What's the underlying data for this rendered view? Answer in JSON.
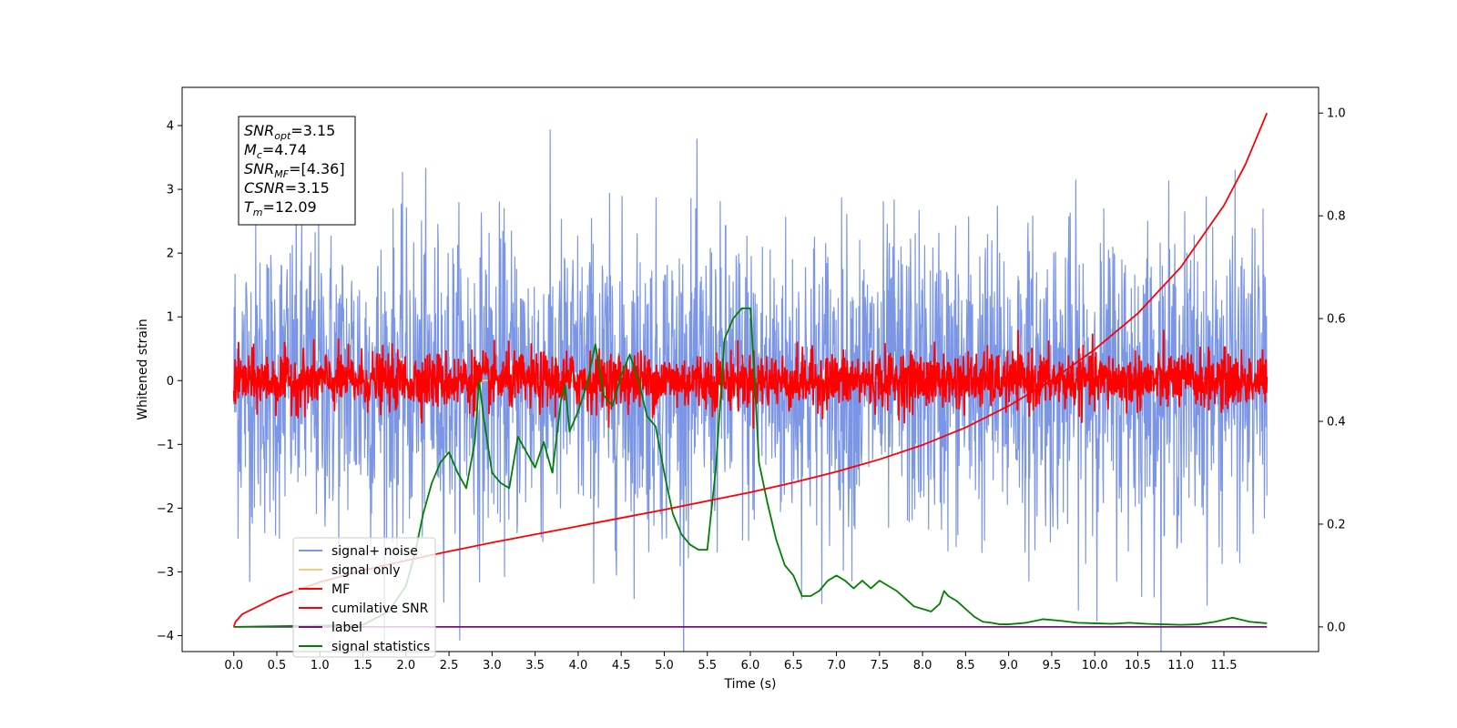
{
  "chart_data": {
    "type": "line",
    "title": "",
    "xlabel": "Time (s)",
    "ylabel": "Whitened strain",
    "y2label": "",
    "xlim": [
      -0.6,
      12.6
    ],
    "ylim": [
      -4.25,
      4.6
    ],
    "y2lim": [
      -0.048,
      1.05
    ],
    "xticks": [
      0,
      0.5,
      1,
      1.5,
      2,
      2.5,
      3,
      3.5,
      4,
      4.5,
      5,
      5.5,
      6,
      6.5,
      7,
      7.5,
      8,
      8.5,
      9,
      9.5,
      10,
      10.5,
      11,
      11.5
    ],
    "xtick_labels": [
      "0.0",
      "0.5",
      "1.0",
      "1.5",
      "2.0",
      "2.5",
      "3.0",
      "3.5",
      "4.0",
      "4.5",
      "5.0",
      "5.5",
      "6.0",
      "6.5",
      "7.0",
      "7.5",
      "8.0",
      "8.5",
      "9.0",
      "9.5",
      "10.0",
      "10.5",
      "11.0",
      "11.5"
    ],
    "yticks": [
      -4,
      -3,
      -2,
      -1,
      0,
      1,
      2,
      3,
      4
    ],
    "ytick_labels": [
      "−4",
      "−3",
      "−2",
      "−1",
      "0",
      "1",
      "2",
      "3",
      "4"
    ],
    "y2ticks": [
      0,
      0.2,
      0.4,
      0.6,
      0.8,
      1.0
    ],
    "y2tick_labels": [
      "0.0",
      "0.2",
      "0.4",
      "0.6",
      "0.8",
      "1.0"
    ],
    "legend_position": "lower-left",
    "grid": false,
    "annotation": {
      "lines": [
        {
          "sym": "SNR",
          "sub": "opt",
          "val": "=3.15"
        },
        {
          "sym": "M",
          "sub": "c",
          "val": "=4.74"
        },
        {
          "sym": "SNR",
          "sub": "MF",
          "val": "=[4.36]"
        },
        {
          "sym": "CSNR",
          "sub": "",
          "val": "=3.15"
        },
        {
          "sym": "T",
          "sub": "m",
          "val": "=12.09"
        }
      ]
    },
    "series": [
      {
        "name": "signal+ noise",
        "axis": "left",
        "color": "#7b96e6",
        "style": "noise",
        "x_range": [
          0,
          12.0
        ],
        "mean": 0,
        "amplitude": 1.2
      },
      {
        "name": "signal only",
        "axis": "left",
        "color": "#ffc973",
        "style": "flat",
        "x_range": [
          0,
          12.0
        ],
        "value": 0
      },
      {
        "name": "MF",
        "axis": "left",
        "color": "#ff0000",
        "style": "noise",
        "x_range": [
          0,
          12.0
        ],
        "mean": 0,
        "amplitude": 0.22
      },
      {
        "name": "cumilative SNR",
        "axis": "right",
        "color": "#ff0000",
        "style": "line",
        "x_range": [
          0,
          12.0
        ],
        "x": [
          0,
          0.02,
          0.1,
          0.5,
          1,
          1.5,
          2,
          2.5,
          3,
          3.5,
          4,
          4.5,
          5,
          5.5,
          6,
          6.5,
          7,
          7.5,
          8,
          8.5,
          9,
          9.5,
          10,
          10.5,
          11,
          11.5,
          11.75,
          12.0
        ],
        "y": [
          0,
          0.01,
          0.025,
          0.058,
          0.087,
          0.11,
          0.129,
          0.147,
          0.164,
          0.18,
          0.196,
          0.212,
          0.228,
          0.245,
          0.262,
          0.281,
          0.302,
          0.326,
          0.354,
          0.388,
          0.43,
          0.48,
          0.54,
          0.61,
          0.7,
          0.82,
          0.9,
          1.0
        ]
      },
      {
        "name": "label",
        "axis": "right",
        "color": "#7b0f7b",
        "style": "flat",
        "x_range": [
          0,
          12.0
        ],
        "value": 0
      },
      {
        "name": "signal statistics",
        "axis": "right",
        "color": "#008000",
        "style": "line",
        "x": [
          0,
          1.5,
          1.8,
          2.0,
          2.1,
          2.2,
          2.3,
          2.4,
          2.5,
          2.6,
          2.7,
          2.8,
          2.85,
          2.9,
          3.0,
          3.1,
          3.2,
          3.3,
          3.4,
          3.5,
          3.6,
          3.7,
          3.8,
          3.85,
          3.9,
          4.0,
          4.1,
          4.2,
          4.25,
          4.3,
          4.4,
          4.5,
          4.6,
          4.7,
          4.8,
          4.9,
          5.0,
          5.1,
          5.2,
          5.3,
          5.4,
          5.5,
          5.6,
          5.7,
          5.8,
          5.9,
          6.0,
          6.05,
          6.1,
          6.2,
          6.3,
          6.4,
          6.5,
          6.6,
          6.7,
          6.8,
          6.9,
          7.0,
          7.1,
          7.2,
          7.3,
          7.4,
          7.5,
          7.6,
          7.7,
          7.8,
          7.9,
          8.0,
          8.1,
          8.2,
          8.25,
          8.3,
          8.4,
          8.5,
          8.6,
          8.7,
          8.8,
          8.9,
          9.0,
          9.2,
          9.4,
          9.6,
          9.8,
          10.0,
          10.2,
          10.4,
          10.6,
          10.8,
          11.0,
          11.2,
          11.4,
          11.6,
          11.8,
          12.0
        ],
        "y": [
          0,
          0.004,
          0.03,
          0.08,
          0.14,
          0.22,
          0.28,
          0.32,
          0.34,
          0.3,
          0.27,
          0.36,
          0.48,
          0.41,
          0.3,
          0.28,
          0.27,
          0.37,
          0.34,
          0.31,
          0.36,
          0.3,
          0.44,
          0.47,
          0.38,
          0.42,
          0.47,
          0.55,
          0.5,
          0.45,
          0.43,
          0.49,
          0.53,
          0.48,
          0.41,
          0.39,
          0.3,
          0.22,
          0.18,
          0.16,
          0.15,
          0.15,
          0.31,
          0.56,
          0.6,
          0.62,
          0.62,
          0.48,
          0.32,
          0.24,
          0.17,
          0.12,
          0.1,
          0.06,
          0.06,
          0.07,
          0.09,
          0.1,
          0.09,
          0.075,
          0.09,
          0.075,
          0.09,
          0.08,
          0.07,
          0.055,
          0.04,
          0.035,
          0.03,
          0.045,
          0.07,
          0.06,
          0.05,
          0.035,
          0.02,
          0.01,
          0.008,
          0.005,
          0.005,
          0.008,
          0.015,
          0.012,
          0.008,
          0.007,
          0.006,
          0.008,
          0.006,
          0.005,
          0.004,
          0.005,
          0.01,
          0.018,
          0.01,
          0.007
        ]
      }
    ]
  }
}
